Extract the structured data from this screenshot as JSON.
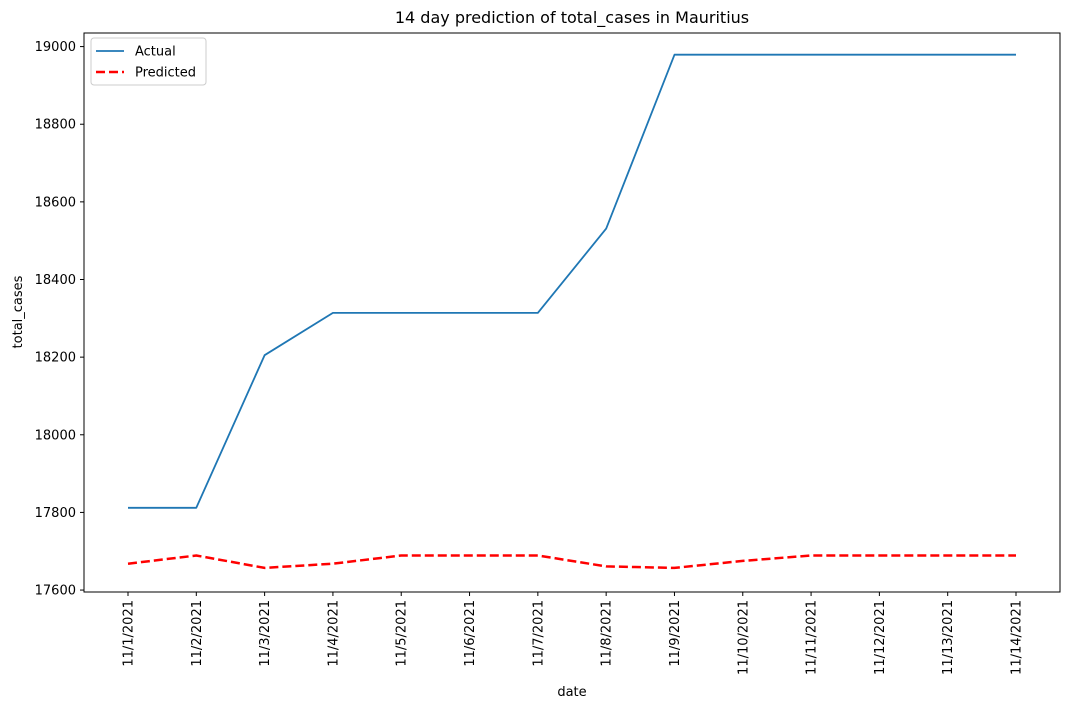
{
  "chart_data": {
    "type": "line",
    "title": "14 day prediction of total_cases in Mauritius",
    "xlabel": "date",
    "ylabel": "total_cases",
    "x": [
      "11/1/2021",
      "11/2/2021",
      "11/3/2021",
      "11/4/2021",
      "11/5/2021",
      "11/6/2021",
      "11/7/2021",
      "11/8/2021",
      "11/9/2021",
      "11/10/2021",
      "11/11/2021",
      "11/12/2021",
      "11/13/2021",
      "11/14/2021"
    ],
    "yticks": [
      17600,
      17800,
      18000,
      18200,
      18400,
      18600,
      18800,
      19000
    ],
    "ylim": [
      17595,
      19035
    ],
    "grid": false,
    "legend_position": "top-left",
    "series": [
      {
        "name": "Actual",
        "color": "#1f77b4",
        "style": "solid",
        "values": [
          17812,
          17812,
          18205,
          18314,
          18314,
          18314,
          18314,
          18531,
          18979,
          18979,
          18979,
          18979,
          18979,
          18979
        ]
      },
      {
        "name": "Predicted",
        "color": "#ff0000",
        "style": "dashed",
        "values": [
          17668,
          17689,
          17657,
          17668,
          17689,
          17689,
          17689,
          17661,
          17657,
          17675,
          17689,
          17689,
          17689,
          17689
        ]
      }
    ]
  }
}
